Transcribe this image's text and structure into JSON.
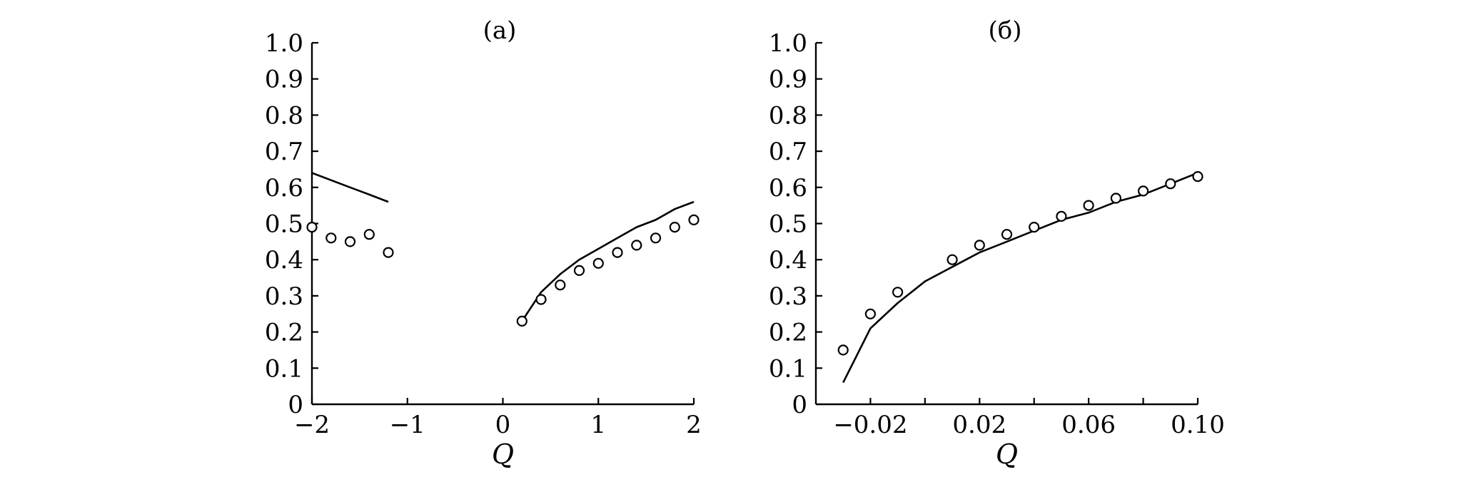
{
  "chart_data": [
    {
      "type": "scatter",
      "panel_label": "(a)",
      "xlabel": "Q",
      "ylabel": "",
      "xlim": [
        -2,
        2
      ],
      "ylim": [
        0,
        1.0
      ],
      "x_ticks": [
        {
          "value": -2,
          "label": "−2"
        },
        {
          "value": -1,
          "label": "−1"
        },
        {
          "value": 0,
          "label": "0"
        },
        {
          "value": 1,
          "label": "1"
        },
        {
          "value": 2,
          "label": "2"
        }
      ],
      "y_ticks": [
        {
          "value": 0,
          "label": "0"
        },
        {
          "value": 0.1,
          "label": "0.1"
        },
        {
          "value": 0.2,
          "label": "0.2"
        },
        {
          "value": 0.3,
          "label": "0.3"
        },
        {
          "value": 0.4,
          "label": "0.4"
        },
        {
          "value": 0.5,
          "label": "0.5"
        },
        {
          "value": 0.6,
          "label": "0.6"
        },
        {
          "value": 0.7,
          "label": "0.7"
        },
        {
          "value": 0.8,
          "label": "0.8"
        },
        {
          "value": 0.9,
          "label": "0.9"
        },
        {
          "value": 1.0,
          "label": "1.0"
        }
      ],
      "grid": false,
      "series": [
        {
          "kind": "line",
          "x": [
            -2.0,
            -1.8,
            -1.6,
            -1.4,
            -1.2
          ],
          "y": [
            0.64,
            0.62,
            0.6,
            0.58,
            0.56
          ]
        },
        {
          "kind": "line",
          "x": [
            0.2,
            0.4,
            0.6,
            0.8,
            1.0,
            1.2,
            1.4,
            1.6,
            1.8,
            2.0
          ],
          "y": [
            0.23,
            0.31,
            0.36,
            0.4,
            0.43,
            0.46,
            0.49,
            0.51,
            0.54,
            0.56
          ]
        },
        {
          "kind": "markers",
          "x": [
            -2.0,
            -1.8,
            -1.6,
            -1.4,
            -1.2
          ],
          "y": [
            0.49,
            0.46,
            0.45,
            0.47,
            0.42
          ]
        },
        {
          "kind": "markers",
          "x": [
            0.2,
            0.4,
            0.6,
            0.8,
            1.0,
            1.2,
            1.4,
            1.6,
            1.8,
            2.0
          ],
          "y": [
            0.23,
            0.29,
            0.33,
            0.37,
            0.39,
            0.42,
            0.44,
            0.46,
            0.49,
            0.51
          ]
        }
      ]
    },
    {
      "type": "scatter",
      "panel_label": "(б)",
      "xlabel": "Q",
      "ylabel": "",
      "xlim": [
        -0.04,
        0.1
      ],
      "ylim": [
        0,
        1.0
      ],
      "x_ticks": [
        {
          "value": -0.02,
          "label": "−0.02"
        },
        {
          "value": 0.0,
          "label": ""
        },
        {
          "value": 0.02,
          "label": "0.02"
        },
        {
          "value": 0.04,
          "label": ""
        },
        {
          "value": 0.06,
          "label": "0.06"
        },
        {
          "value": 0.08,
          "label": ""
        },
        {
          "value": 0.1,
          "label": "0.10"
        }
      ],
      "y_ticks": [
        {
          "value": 0,
          "label": "0"
        },
        {
          "value": 0.1,
          "label": "0.1"
        },
        {
          "value": 0.2,
          "label": "0.2"
        },
        {
          "value": 0.3,
          "label": "0.3"
        },
        {
          "value": 0.4,
          "label": "0.4"
        },
        {
          "value": 0.5,
          "label": "0.5"
        },
        {
          "value": 0.6,
          "label": "0.6"
        },
        {
          "value": 0.7,
          "label": "0.7"
        },
        {
          "value": 0.8,
          "label": "0.8"
        },
        {
          "value": 0.9,
          "label": "0.9"
        },
        {
          "value": 1.0,
          "label": "1.0"
        }
      ],
      "grid": false,
      "series": [
        {
          "kind": "line",
          "x": [
            -0.03,
            -0.02,
            -0.01,
            0.0,
            0.01,
            0.02,
            0.03,
            0.04,
            0.05,
            0.06,
            0.07,
            0.08,
            0.09,
            0.1
          ],
          "y": [
            0.06,
            0.21,
            0.28,
            0.34,
            0.38,
            0.42,
            0.45,
            0.48,
            0.51,
            0.53,
            0.56,
            0.58,
            0.61,
            0.64
          ]
        },
        {
          "kind": "markers",
          "x": [
            -0.03,
            -0.02,
            -0.01,
            0.01,
            0.02,
            0.03,
            0.04,
            0.05,
            0.06,
            0.07,
            0.08,
            0.09,
            0.1
          ],
          "y": [
            0.15,
            0.25,
            0.31,
            0.4,
            0.44,
            0.47,
            0.49,
            0.52,
            0.55,
            0.57,
            0.59,
            0.61,
            0.63
          ]
        }
      ]
    }
  ]
}
